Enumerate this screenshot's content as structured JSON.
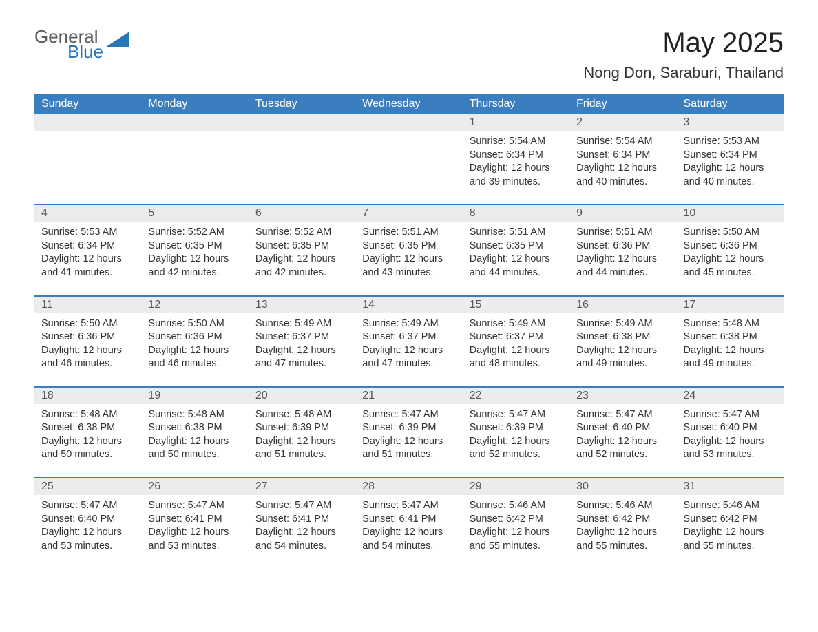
{
  "logo": {
    "general": "General",
    "blue": "Blue"
  },
  "title": "May 2025",
  "location": "Nong Don, Saraburi, Thailand",
  "colors": {
    "header_bg": "#3a7ebf",
    "header_text": "#ffffff",
    "daynum_bg": "#ececec",
    "daynum_text": "#555555",
    "body_text": "#333333",
    "logo_gray": "#5b5b5b",
    "logo_blue": "#2a77b8",
    "week_border": "#3a7ebf",
    "background": "#ffffff"
  },
  "typography": {
    "title_fontsize": 40,
    "location_fontsize": 22,
    "header_fontsize": 16,
    "daynum_fontsize": 16,
    "details_fontsize": 14.5,
    "font_family": "Arial"
  },
  "layout": {
    "type": "table",
    "columns_count": 7,
    "rows_count": 5
  },
  "columns": [
    "Sunday",
    "Monday",
    "Tuesday",
    "Wednesday",
    "Thursday",
    "Friday",
    "Saturday"
  ],
  "weeks": [
    [
      null,
      null,
      null,
      null,
      {
        "day": "1",
        "sunrise": "Sunrise: 5:54 AM",
        "sunset": "Sunset: 6:34 PM",
        "daylight": "Daylight: 12 hours and 39 minutes."
      },
      {
        "day": "2",
        "sunrise": "Sunrise: 5:54 AM",
        "sunset": "Sunset: 6:34 PM",
        "daylight": "Daylight: 12 hours and 40 minutes."
      },
      {
        "day": "3",
        "sunrise": "Sunrise: 5:53 AM",
        "sunset": "Sunset: 6:34 PM",
        "daylight": "Daylight: 12 hours and 40 minutes."
      }
    ],
    [
      {
        "day": "4",
        "sunrise": "Sunrise: 5:53 AM",
        "sunset": "Sunset: 6:34 PM",
        "daylight": "Daylight: 12 hours and 41 minutes."
      },
      {
        "day": "5",
        "sunrise": "Sunrise: 5:52 AM",
        "sunset": "Sunset: 6:35 PM",
        "daylight": "Daylight: 12 hours and 42 minutes."
      },
      {
        "day": "6",
        "sunrise": "Sunrise: 5:52 AM",
        "sunset": "Sunset: 6:35 PM",
        "daylight": "Daylight: 12 hours and 42 minutes."
      },
      {
        "day": "7",
        "sunrise": "Sunrise: 5:51 AM",
        "sunset": "Sunset: 6:35 PM",
        "daylight": "Daylight: 12 hours and 43 minutes."
      },
      {
        "day": "8",
        "sunrise": "Sunrise: 5:51 AM",
        "sunset": "Sunset: 6:35 PM",
        "daylight": "Daylight: 12 hours and 44 minutes."
      },
      {
        "day": "9",
        "sunrise": "Sunrise: 5:51 AM",
        "sunset": "Sunset: 6:36 PM",
        "daylight": "Daylight: 12 hours and 44 minutes."
      },
      {
        "day": "10",
        "sunrise": "Sunrise: 5:50 AM",
        "sunset": "Sunset: 6:36 PM",
        "daylight": "Daylight: 12 hours and 45 minutes."
      }
    ],
    [
      {
        "day": "11",
        "sunrise": "Sunrise: 5:50 AM",
        "sunset": "Sunset: 6:36 PM",
        "daylight": "Daylight: 12 hours and 46 minutes."
      },
      {
        "day": "12",
        "sunrise": "Sunrise: 5:50 AM",
        "sunset": "Sunset: 6:36 PM",
        "daylight": "Daylight: 12 hours and 46 minutes."
      },
      {
        "day": "13",
        "sunrise": "Sunrise: 5:49 AM",
        "sunset": "Sunset: 6:37 PM",
        "daylight": "Daylight: 12 hours and 47 minutes."
      },
      {
        "day": "14",
        "sunrise": "Sunrise: 5:49 AM",
        "sunset": "Sunset: 6:37 PM",
        "daylight": "Daylight: 12 hours and 47 minutes."
      },
      {
        "day": "15",
        "sunrise": "Sunrise: 5:49 AM",
        "sunset": "Sunset: 6:37 PM",
        "daylight": "Daylight: 12 hours and 48 minutes."
      },
      {
        "day": "16",
        "sunrise": "Sunrise: 5:49 AM",
        "sunset": "Sunset: 6:38 PM",
        "daylight": "Daylight: 12 hours and 49 minutes."
      },
      {
        "day": "17",
        "sunrise": "Sunrise: 5:48 AM",
        "sunset": "Sunset: 6:38 PM",
        "daylight": "Daylight: 12 hours and 49 minutes."
      }
    ],
    [
      {
        "day": "18",
        "sunrise": "Sunrise: 5:48 AM",
        "sunset": "Sunset: 6:38 PM",
        "daylight": "Daylight: 12 hours and 50 minutes."
      },
      {
        "day": "19",
        "sunrise": "Sunrise: 5:48 AM",
        "sunset": "Sunset: 6:38 PM",
        "daylight": "Daylight: 12 hours and 50 minutes."
      },
      {
        "day": "20",
        "sunrise": "Sunrise: 5:48 AM",
        "sunset": "Sunset: 6:39 PM",
        "daylight": "Daylight: 12 hours and 51 minutes."
      },
      {
        "day": "21",
        "sunrise": "Sunrise: 5:47 AM",
        "sunset": "Sunset: 6:39 PM",
        "daylight": "Daylight: 12 hours and 51 minutes."
      },
      {
        "day": "22",
        "sunrise": "Sunrise: 5:47 AM",
        "sunset": "Sunset: 6:39 PM",
        "daylight": "Daylight: 12 hours and 52 minutes."
      },
      {
        "day": "23",
        "sunrise": "Sunrise: 5:47 AM",
        "sunset": "Sunset: 6:40 PM",
        "daylight": "Daylight: 12 hours and 52 minutes."
      },
      {
        "day": "24",
        "sunrise": "Sunrise: 5:47 AM",
        "sunset": "Sunset: 6:40 PM",
        "daylight": "Daylight: 12 hours and 53 minutes."
      }
    ],
    [
      {
        "day": "25",
        "sunrise": "Sunrise: 5:47 AM",
        "sunset": "Sunset: 6:40 PM",
        "daylight": "Daylight: 12 hours and 53 minutes."
      },
      {
        "day": "26",
        "sunrise": "Sunrise: 5:47 AM",
        "sunset": "Sunset: 6:41 PM",
        "daylight": "Daylight: 12 hours and 53 minutes."
      },
      {
        "day": "27",
        "sunrise": "Sunrise: 5:47 AM",
        "sunset": "Sunset: 6:41 PM",
        "daylight": "Daylight: 12 hours and 54 minutes."
      },
      {
        "day": "28",
        "sunrise": "Sunrise: 5:47 AM",
        "sunset": "Sunset: 6:41 PM",
        "daylight": "Daylight: 12 hours and 54 minutes."
      },
      {
        "day": "29",
        "sunrise": "Sunrise: 5:46 AM",
        "sunset": "Sunset: 6:42 PM",
        "daylight": "Daylight: 12 hours and 55 minutes."
      },
      {
        "day": "30",
        "sunrise": "Sunrise: 5:46 AM",
        "sunset": "Sunset: 6:42 PM",
        "daylight": "Daylight: 12 hours and 55 minutes."
      },
      {
        "day": "31",
        "sunrise": "Sunrise: 5:46 AM",
        "sunset": "Sunset: 6:42 PM",
        "daylight": "Daylight: 12 hours and 55 minutes."
      }
    ]
  ]
}
